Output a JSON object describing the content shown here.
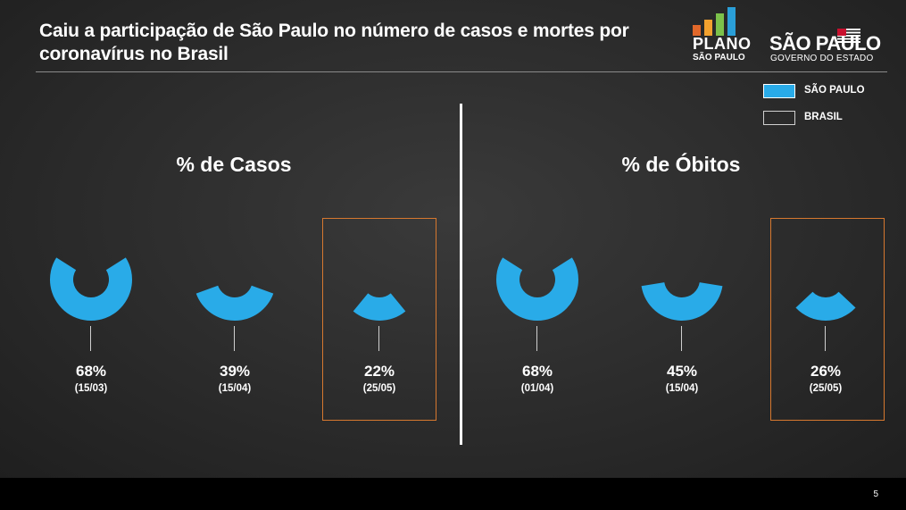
{
  "title": "Caiu a participação de São Paulo no número de casos e mortes por coronavírus no Brasil",
  "logos": {
    "plano_line1": "PLANO",
    "plano_line2": "SÃO PAULO",
    "sp_line1": "SÃO PAULO",
    "sp_line2": "GOVERNO DO ESTADO",
    "plano_bar_colors": [
      "#e1682a",
      "#f2a12e",
      "#7cc14a",
      "#2a9fd8"
    ]
  },
  "legend": [
    {
      "label": "SÃO PAULO",
      "color": "#29abe8",
      "filled": true
    },
    {
      "label": "BRASIL",
      "color": "#d0d0d0",
      "filled": false
    }
  ],
  "page_number": "5",
  "colors": {
    "sp": "#29abe8",
    "highlight": "#d6782f"
  },
  "chart_data": [
    {
      "type": "pie",
      "title": "% de Casos",
      "categories": [
        "15/03",
        "15/04",
        "25/05"
      ],
      "value_labels": [
        "68%",
        "39%",
        "22%"
      ],
      "date_labels": [
        "(15/03)",
        "(15/04)",
        "(25/05)"
      ],
      "series": [
        {
          "name": "SÃO PAULO",
          "values": [
            68,
            39,
            22
          ]
        }
      ],
      "highlighted": "25/05"
    },
    {
      "type": "pie",
      "title": "% de Óbitos",
      "categories": [
        "01/04",
        "15/04",
        "25/05"
      ],
      "value_labels": [
        "68%",
        "45%",
        "26%"
      ],
      "date_labels": [
        "(01/04)",
        "(15/04)",
        "(25/05)"
      ],
      "series": [
        {
          "name": "SÃO PAULO",
          "values": [
            68,
            45,
            26
          ]
        }
      ],
      "highlighted": "25/05"
    }
  ]
}
